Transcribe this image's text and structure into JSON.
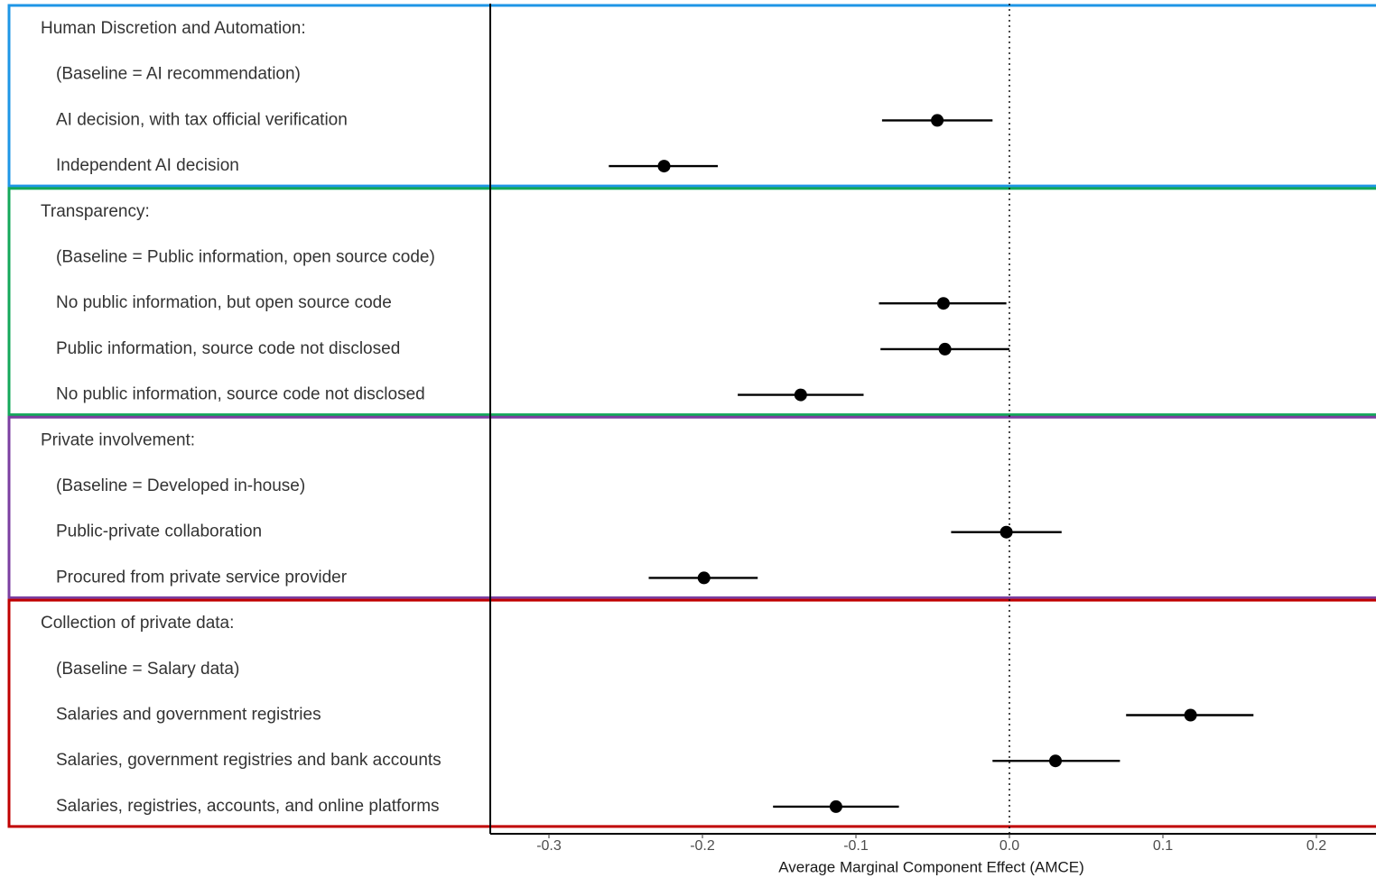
{
  "chart_data": {
    "type": "scatter",
    "subtype": "coefficient-plot-with-confidence-intervals",
    "title": "",
    "xlabel": "Average Marginal Component Effect (AMCE)",
    "ylabel": "",
    "xlim": [
      -0.34,
      0.24
    ],
    "x_ticks": [
      -0.3,
      -0.2,
      -0.1,
      0.0,
      0.1,
      0.2
    ],
    "x_tick_labels": [
      "-0.3",
      "-0.2",
      "-0.1",
      "0.0",
      "0.1",
      "0.2"
    ],
    "reference_line": {
      "x": 0.0,
      "style": "dotted"
    },
    "grid": false,
    "legend": "none",
    "colors": {
      "point": "#000000",
      "interval": "#000000",
      "axis": "#000000",
      "group_borders": [
        "#1e96e6",
        "#13a85a",
        "#7b3fa0",
        "#c00000"
      ]
    },
    "groups": [
      {
        "heading": "Human Discretion and Automation:",
        "baseline": "(Baseline = AI recommendation)",
        "items": [
          {
            "label": "AI decision, with tax official verification",
            "estimate": -0.047,
            "ci_low": -0.083,
            "ci_high": -0.011
          },
          {
            "label": "Independent AI decision",
            "estimate": -0.225,
            "ci_low": -0.261,
            "ci_high": -0.19
          }
        ]
      },
      {
        "heading": "Transparency:",
        "baseline": "(Baseline = Public information, open source code)",
        "items": [
          {
            "label": "No public information, but open source code",
            "estimate": -0.043,
            "ci_low": -0.085,
            "ci_high": -0.002
          },
          {
            "label": "Public information, source code not disclosed",
            "estimate": -0.042,
            "ci_low": -0.084,
            "ci_high": 0.0
          },
          {
            "label": "No public information, source code not disclosed",
            "estimate": -0.136,
            "ci_low": -0.177,
            "ci_high": -0.095
          }
        ]
      },
      {
        "heading": "Private involvement:",
        "baseline": "(Baseline = Developed in-house)",
        "items": [
          {
            "label": "Public-private collaboration",
            "estimate": -0.002,
            "ci_low": -0.038,
            "ci_high": 0.034
          },
          {
            "label": "Procured from private service provider",
            "estimate": -0.199,
            "ci_low": -0.235,
            "ci_high": -0.164
          }
        ]
      },
      {
        "heading": "Collection of private data:",
        "baseline": "(Baseline = Salary data)",
        "items": [
          {
            "label": "Salaries and government registries",
            "estimate": 0.118,
            "ci_low": 0.076,
            "ci_high": 0.159
          },
          {
            "label": "Salaries, government registries and bank accounts",
            "estimate": 0.03,
            "ci_low": -0.011,
            "ci_high": 0.072
          },
          {
            "label": "Salaries, registries, accounts, and online platforms",
            "estimate": -0.113,
            "ci_low": -0.154,
            "ci_high": -0.072
          }
        ]
      }
    ]
  }
}
